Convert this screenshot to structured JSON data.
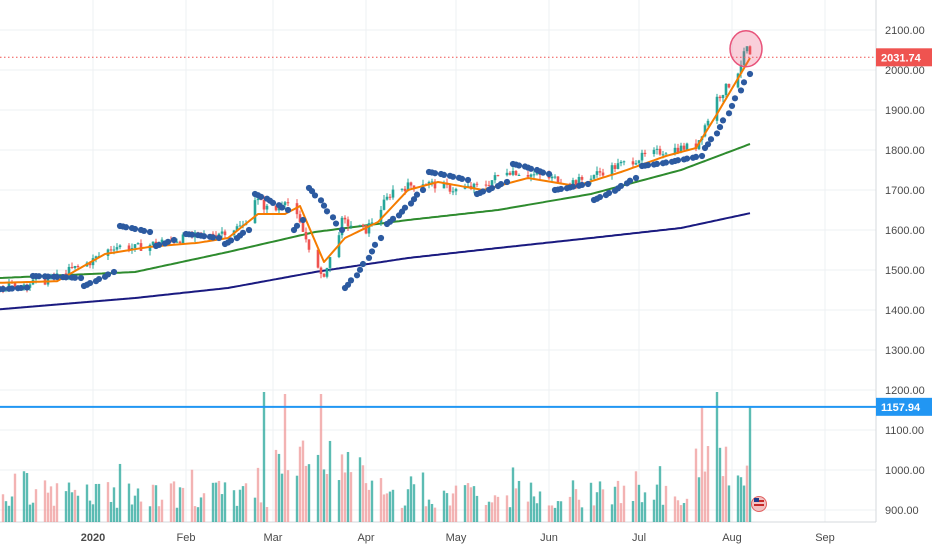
{
  "chart_data": {
    "type": "line",
    "title": "",
    "x_ticks": [
      {
        "label": "2020",
        "date": "2020-01-01"
      },
      {
        "label": "Feb",
        "date": "2020-02-01"
      },
      {
        "label": "Mar",
        "date": "2020-03-01"
      },
      {
        "label": "Apr",
        "date": "2020-04-01"
      },
      {
        "label": "May",
        "date": "2020-05-01"
      },
      {
        "label": "Jun",
        "date": "2020-06-01"
      },
      {
        "label": "Jul",
        "date": "2020-07-01"
      },
      {
        "label": "Aug",
        "date": "2020-08-01"
      },
      {
        "label": "Sep",
        "date": "2020-09-01"
      }
    ],
    "y_ticks": [
      "2100.00",
      "2000.00",
      "1900.00",
      "1800.00",
      "1700.00",
      "1600.00",
      "1500.00",
      "1400.00",
      "1300.00",
      "1200.00",
      "1100.00",
      "1000.00",
      "900.00"
    ],
    "ylim": [
      880,
      2120
    ],
    "x_range": [
      "2019-12-01",
      "2020-09-18"
    ],
    "grid": true,
    "price_label": "2031.74",
    "price_line_value": 2031.74,
    "volume_level_label": "1157.94",
    "volume_level_value": 1157.94,
    "series": [
      {
        "kind": "price-candles",
        "points": [
          [
            "2019-12-01",
            1460
          ],
          [
            "2019-12-15",
            1470
          ],
          [
            "2019-12-31",
            1520
          ],
          [
            "2020-01-08",
            1560
          ],
          [
            "2020-01-15",
            1555
          ],
          [
            "2020-01-24",
            1570
          ],
          [
            "2020-02-01",
            1580
          ],
          [
            "2020-02-10",
            1590
          ],
          [
            "2020-02-20",
            1610
          ],
          [
            "2020-02-24",
            1680
          ],
          [
            "2020-03-01",
            1640
          ],
          [
            "2020-03-05",
            1680
          ],
          [
            "2020-03-09",
            1630
          ],
          [
            "2020-03-13",
            1560
          ],
          [
            "2020-03-17",
            1480
          ],
          [
            "2020-03-19",
            1505
          ],
          [
            "2020-03-24",
            1620
          ],
          [
            "2020-04-01",
            1600
          ],
          [
            "2020-04-10",
            1700
          ],
          [
            "2020-04-20",
            1720
          ],
          [
            "2020-05-01",
            1700
          ],
          [
            "2020-05-10",
            1710
          ],
          [
            "2020-05-18",
            1750
          ],
          [
            "2020-06-01",
            1730
          ],
          [
            "2020-06-10",
            1720
          ],
          [
            "2020-06-20",
            1750
          ],
          [
            "2020-07-01",
            1780
          ],
          [
            "2020-07-10",
            1800
          ],
          [
            "2020-07-20",
            1810
          ],
          [
            "2020-07-27",
            1930
          ],
          [
            "2020-08-02",
            1980
          ],
          [
            "2020-08-06",
            2055
          ],
          [
            "2020-08-07",
            2032
          ]
        ],
        "color": "#26a69a"
      },
      {
        "kind": "moving-average-short",
        "points": [
          [
            "2019-12-01",
            1468
          ],
          [
            "2019-12-20",
            1472
          ],
          [
            "2020-01-05",
            1540
          ],
          [
            "2020-01-20",
            1558
          ],
          [
            "2020-02-05",
            1568
          ],
          [
            "2020-02-15",
            1580
          ],
          [
            "2020-02-25",
            1640
          ],
          [
            "2020-03-05",
            1640
          ],
          [
            "2020-03-10",
            1660
          ],
          [
            "2020-03-18",
            1520
          ],
          [
            "2020-03-25",
            1580
          ],
          [
            "2020-04-05",
            1620
          ],
          [
            "2020-04-15",
            1700
          ],
          [
            "2020-04-25",
            1720
          ],
          [
            "2020-05-10",
            1700
          ],
          [
            "2020-05-25",
            1730
          ],
          [
            "2020-06-10",
            1710
          ],
          [
            "2020-06-25",
            1745
          ],
          [
            "2020-07-10",
            1785
          ],
          [
            "2020-07-20",
            1805
          ],
          [
            "2020-07-27",
            1890
          ],
          [
            "2020-08-07",
            2030
          ]
        ],
        "color": "#f57c00"
      },
      {
        "kind": "moving-average-medium",
        "points": [
          [
            "2019-12-01",
            1480
          ],
          [
            "2020-01-15",
            1495
          ],
          [
            "2020-02-15",
            1545
          ],
          [
            "2020-03-15",
            1595
          ],
          [
            "2020-04-15",
            1625
          ],
          [
            "2020-05-15",
            1650
          ],
          [
            "2020-06-15",
            1690
          ],
          [
            "2020-07-15",
            1750
          ],
          [
            "2020-08-07",
            1815
          ]
        ],
        "color": "#2e8b2e"
      },
      {
        "kind": "moving-average-long",
        "points": [
          [
            "2019-12-01",
            1402
          ],
          [
            "2020-01-15",
            1430
          ],
          [
            "2020-02-15",
            1455
          ],
          [
            "2020-03-15",
            1495
          ],
          [
            "2020-04-15",
            1530
          ],
          [
            "2020-05-15",
            1555
          ],
          [
            "2020-06-15",
            1580
          ],
          [
            "2020-07-15",
            1605
          ],
          [
            "2020-08-07",
            1642
          ]
        ],
        "color": "#1a1a80"
      },
      {
        "kind": "parabolic-sar",
        "segments": [
          {
            "from": "2019-12-01",
            "to": "2019-12-10",
            "start": 1452,
            "end": 1456
          },
          {
            "from": "2019-12-12",
            "to": "2019-12-28",
            "start": 1485,
            "end": 1480
          },
          {
            "from": "2019-12-29",
            "to": "2020-01-08",
            "start": 1460,
            "end": 1495
          },
          {
            "from": "2020-01-10",
            "to": "2020-01-20",
            "start": 1610,
            "end": 1595
          },
          {
            "from": "2020-01-22",
            "to": "2020-01-28",
            "start": 1560,
            "end": 1575
          },
          {
            "from": "2020-02-01",
            "to": "2020-02-12",
            "start": 1590,
            "end": 1580
          },
          {
            "from": "2020-02-14",
            "to": "2020-02-22",
            "start": 1565,
            "end": 1600
          },
          {
            "from": "2020-02-24",
            "to": "2020-03-06",
            "start": 1690,
            "end": 1650
          },
          {
            "from": "2020-03-08",
            "to": "2020-03-11",
            "start": 1600,
            "end": 1625
          },
          {
            "from": "2020-03-13",
            "to": "2020-03-24",
            "start": 1705,
            "end": 1600
          },
          {
            "from": "2020-03-25",
            "to": "2020-04-06",
            "start": 1455,
            "end": 1580
          },
          {
            "from": "2020-04-08",
            "to": "2020-04-20",
            "start": 1615,
            "end": 1700
          },
          {
            "from": "2020-04-22",
            "to": "2020-05-05",
            "start": 1745,
            "end": 1725
          },
          {
            "from": "2020-05-08",
            "to": "2020-05-18",
            "start": 1690,
            "end": 1720
          },
          {
            "from": "2020-05-20",
            "to": "2020-06-01",
            "start": 1765,
            "end": 1740
          },
          {
            "from": "2020-06-03",
            "to": "2020-06-14",
            "start": 1700,
            "end": 1715
          },
          {
            "from": "2020-06-16",
            "to": "2020-06-30",
            "start": 1675,
            "end": 1730
          },
          {
            "from": "2020-07-02",
            "to": "2020-07-22",
            "start": 1760,
            "end": 1785
          },
          {
            "from": "2020-07-23",
            "to": "2020-08-07",
            "start": 1805,
            "end": 1990
          }
        ],
        "color": "#2c5aa0"
      },
      {
        "kind": "volume",
        "from": "2019-12-01",
        "to": "2020-08-07",
        "range": [
          880,
          1195
        ],
        "spikes": [
          [
            "2020-02-27",
            1195
          ],
          [
            "2020-03-05",
            1190
          ],
          [
            "2020-03-17",
            1190
          ],
          [
            "2020-07-22",
            1160
          ],
          [
            "2020-07-27",
            1195
          ],
          [
            "2020-08-07",
            1160
          ]
        ],
        "colors": [
          "#26a69a",
          "#ef9a9a"
        ]
      }
    ]
  },
  "highlight": {
    "date": "2020-08-05",
    "value": 2053,
    "color": "#e8537a"
  },
  "colors": {
    "price_line": "#ef5350",
    "volume_level": "#2196f3",
    "grid": "#eef0f3",
    "axis_text": "#4a4a4a"
  }
}
